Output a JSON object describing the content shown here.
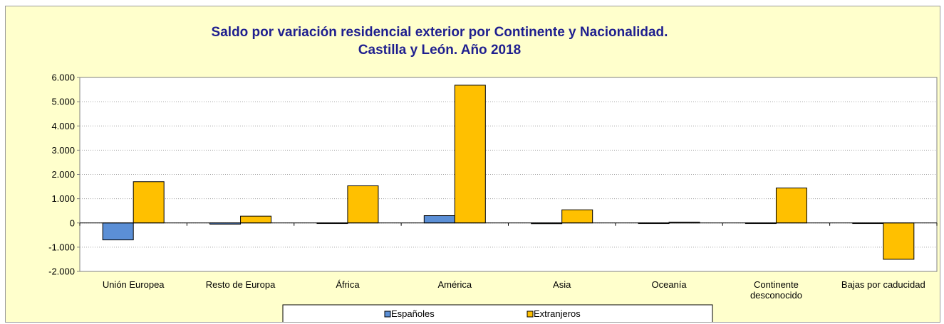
{
  "chart_data": {
    "type": "bar",
    "title": "Saldo por variación residencial exterior por Continente y Nacionalidad.",
    "subtitle": "Castilla y León. Año 2018",
    "xlabel": "",
    "ylabel": "",
    "categories": [
      [
        "Unión Europea"
      ],
      [
        "Resto de Europa"
      ],
      [
        "África"
      ],
      [
        "América"
      ],
      [
        "Asia"
      ],
      [
        "Oceanía"
      ],
      [
        "Continente",
        "desconocido"
      ],
      [
        "Bajas por caducidad"
      ]
    ],
    "series": [
      {
        "name": "Españoles",
        "color": "#5b8fd6",
        "values": [
          -700,
          -50,
          -20,
          300,
          -30,
          -20,
          -20,
          0
        ]
      },
      {
        "name": "Extranjeros",
        "color": "#ffc000",
        "values": [
          1700,
          280,
          1530,
          5680,
          540,
          30,
          1440,
          -1500
        ]
      }
    ],
    "ylim": [
      -2000,
      6000
    ],
    "yticks": [
      -2000,
      -1000,
      0,
      1000,
      2000,
      3000,
      4000,
      5000,
      6000
    ],
    "ytick_labels": [
      "-2.000",
      "-1.000",
      "0",
      "1.000",
      "2.000",
      "3.000",
      "4.000",
      "5.000",
      "6.000"
    ],
    "grid": true,
    "legend_position": "bottom"
  }
}
